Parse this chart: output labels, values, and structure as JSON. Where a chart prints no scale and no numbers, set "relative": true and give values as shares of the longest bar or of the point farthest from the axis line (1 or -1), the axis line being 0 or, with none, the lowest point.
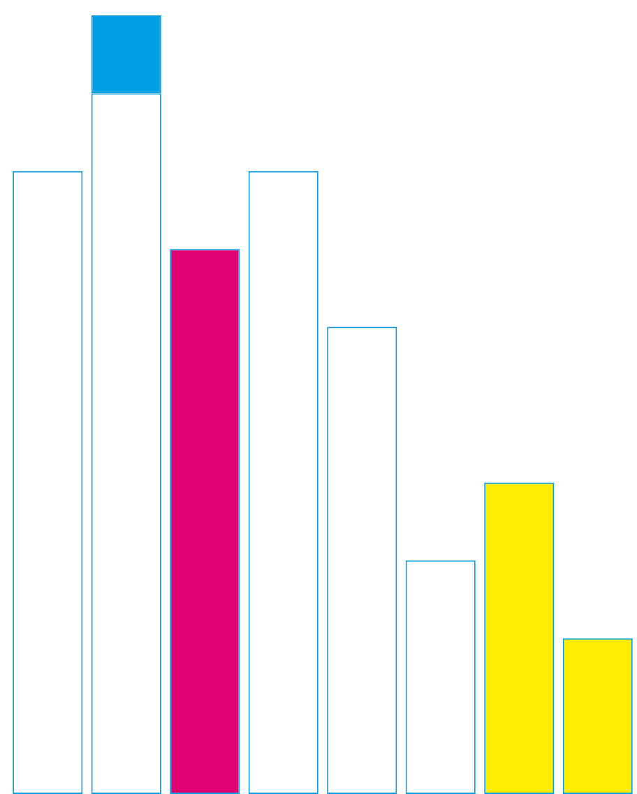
{
  "chart_data": {
    "type": "bar",
    "relative": true,
    "stacked": true,
    "categories": [
      null,
      null,
      null,
      null,
      null,
      null,
      null,
      null
    ],
    "series": [
      {
        "colors": [
          "#ffffff",
          "#ffffff",
          "#e0006f",
          "#ffffff",
          "#ffffff",
          "#ffffff",
          "#ffee00",
          "#ffee00"
        ],
        "values": [
          0.8,
          0.9,
          0.7,
          0.8,
          0.6,
          0.3,
          0.4,
          0.2
        ]
      },
      {
        "color": "#009fe3",
        "values": [
          null,
          0.1,
          null,
          null,
          null,
          null,
          null,
          null
        ]
      }
    ]
  }
}
